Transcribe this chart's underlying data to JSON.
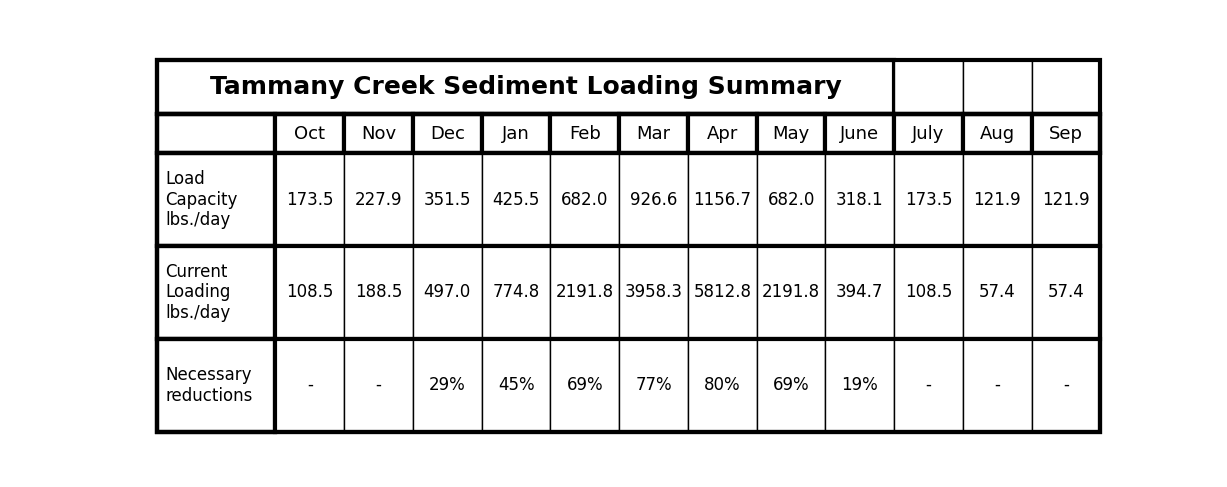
{
  "title": "Tammany Creek Sediment Loading Summary",
  "columns": [
    "",
    "Oct",
    "Nov",
    "Dec",
    "Jan",
    "Feb",
    "Mar",
    "Apr",
    "May",
    "June",
    "July",
    "Aug",
    "Sep"
  ],
  "rows": [
    {
      "label": "Load\nCapacity\nlbs./day",
      "values": [
        "173.5",
        "227.9",
        "351.5",
        "425.5",
        "682.0",
        "926.6",
        "1156.7",
        "682.0",
        "318.1",
        "173.5",
        "121.9",
        "121.9"
      ]
    },
    {
      "label": "Current\nLoading\nlbs./day",
      "values": [
        "108.5",
        "188.5",
        "497.0",
        "774.8",
        "2191.8",
        "3958.3",
        "5812.8",
        "2191.8",
        "394.7",
        "108.5",
        "57.4",
        "57.4"
      ]
    },
    {
      "label": "Necessary\nreductions",
      "values": [
        "-",
        "-",
        "29%",
        "45%",
        "69%",
        "77%",
        "80%",
        "69%",
        "19%",
        "-",
        "-",
        "-"
      ]
    }
  ],
  "title_fontsize": 18,
  "header_fontsize": 13,
  "cell_fontsize": 12,
  "label_fontsize": 12,
  "background_color": "#ffffff",
  "text_color": "#000000",
  "border_color": "#000000",
  "thick_lw": 3.0,
  "thin_lw": 1.0,
  "title_span": 10,
  "col_widths_rel": [
    1.72,
    1.0,
    1.0,
    1.0,
    1.0,
    1.0,
    1.0,
    1.0,
    1.0,
    1.0,
    1.0,
    1.0,
    1.0
  ],
  "row_heights_rel": [
    1.0,
    0.72,
    1.72,
    1.72,
    1.72
  ]
}
